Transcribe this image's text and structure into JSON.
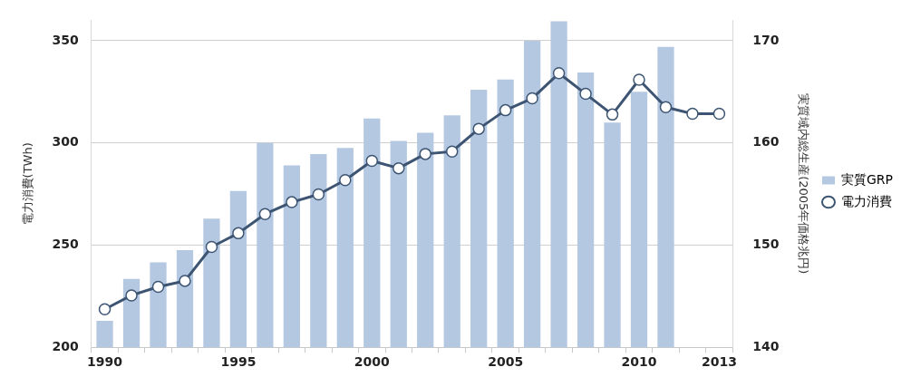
{
  "chart_data": {
    "type": "bar",
    "ylabel": "電力消費(TWh)",
    "y2label": "実質域内総生産(2005年価格兆円)",
    "categories": [
      "1990",
      null,
      null,
      null,
      null,
      "1995",
      null,
      null,
      null,
      null,
      "2000",
      null,
      null,
      null,
      null,
      "2005",
      null,
      null,
      null,
      null,
      "2010",
      null,
      null,
      "2013"
    ],
    "series": [
      {
        "name": "実質GRP",
        "axis": "y2",
        "color": "#b4c8e1",
        "values": [
          142.6,
          146.7,
          148.3,
          149.5,
          152.6,
          155.3,
          160.0,
          157.8,
          158.9,
          159.5,
          162.4,
          160.2,
          161.0,
          162.7,
          165.2,
          166.2,
          170.0,
          171.9,
          166.9,
          162.0,
          165.0,
          169.4,
          null,
          null
        ]
      },
      {
        "name": "電力消費",
        "type": "line",
        "color": "#3d5573",
        "marker": "circle",
        "values": [
          218.6,
          225.4,
          229.6,
          232.5,
          249.1,
          255.8,
          265.2,
          271.0,
          274.8,
          281.8,
          291.2,
          287.6,
          294.6,
          295.8,
          306.9,
          316.0,
          321.8,
          334.1,
          324.0,
          313.9,
          330.9,
          317.5,
          314.3,
          314.3
        ]
      }
    ],
    "ylim": [
      200,
      360
    ],
    "yticks": [
      200,
      250,
      300,
      350
    ],
    "y2lim": [
      140,
      172
    ],
    "y2ticks": [
      140,
      150,
      160,
      170
    ],
    "grid": "y",
    "legend": "right"
  }
}
